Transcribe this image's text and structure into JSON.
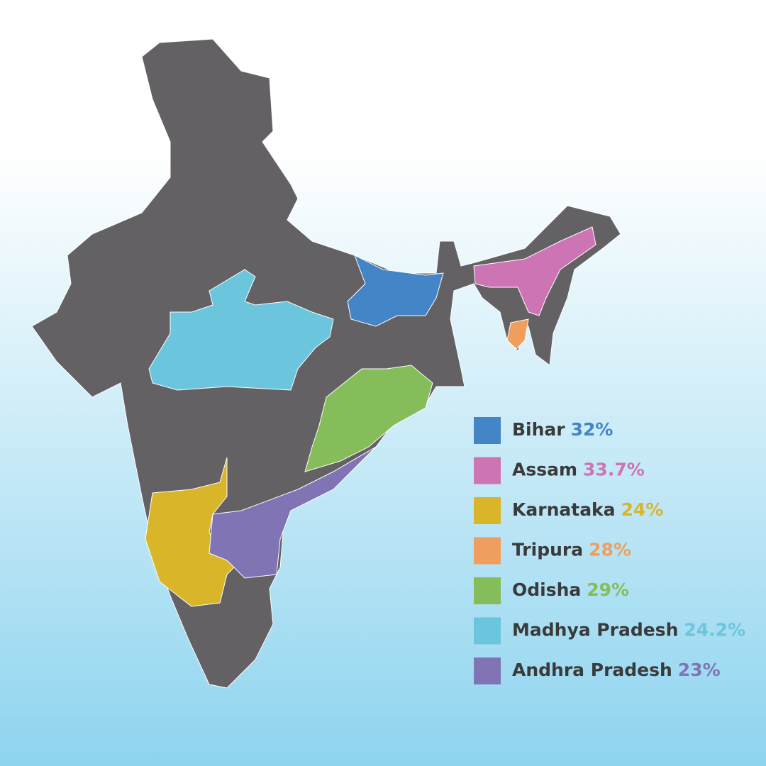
{
  "legend": {
    "items": [
      {
        "name": "Bihar",
        "value": 32,
        "value_label": "32%",
        "color": "#4385c7"
      },
      {
        "name": "Assam",
        "value": 33.7,
        "value_label": "33.7%",
        "color": "#cd74b5"
      },
      {
        "name": "Karnataka",
        "value": 24,
        "value_label": "24%",
        "color": "#d9b52a"
      },
      {
        "name": "Tripura",
        "value": 28,
        "value_label": "28%",
        "color": "#ef9e5e"
      },
      {
        "name": "Odisha",
        "value": 29,
        "value_label": "29%",
        "color": "#85bd5a"
      },
      {
        "name": "Madhya Pradesh",
        "value": 24.2,
        "value_label": "24.2%",
        "color": "#6bc5dc"
      },
      {
        "name": "Andhra Pradesh",
        "value": 23,
        "value_label": "23%",
        "color": "#8074b5"
      }
    ]
  }
}
